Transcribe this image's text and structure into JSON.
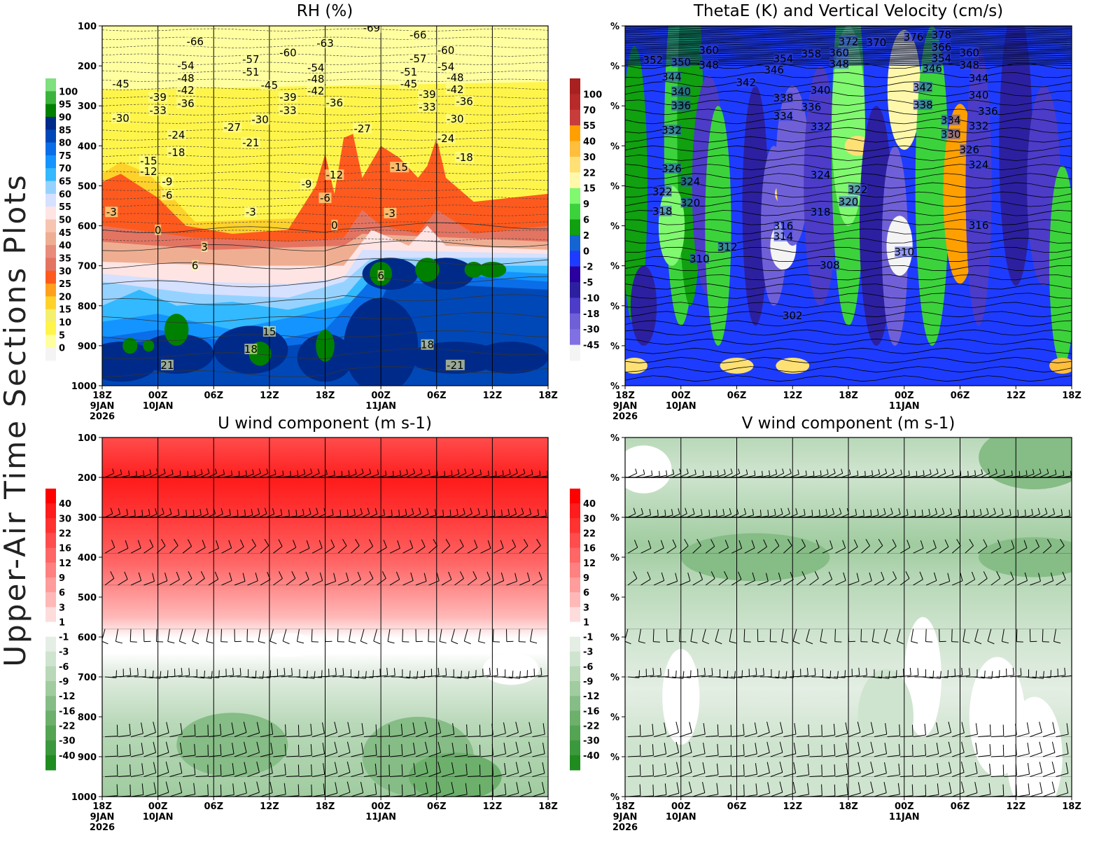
{
  "page": {
    "side_title": "Upper-Air Time Sections Plots"
  },
  "chart_data": [
    {
      "type": "heatmap",
      "title": "RH (%)",
      "y_axis": {
        "range_hPa": [
          1000,
          100
        ],
        "inverted": true,
        "ticks": [
          "100",
          "200",
          "300",
          "400",
          "500",
          "600",
          "700",
          "800",
          "900",
          "1000"
        ]
      },
      "x_axis": {
        "range": [
          "9JAN2026 18Z",
          "11JAN2026 18Z"
        ],
        "ticks": [
          {
            "label": "18Z",
            "sub": "9JAN",
            "sub2": "2026"
          },
          {
            "label": "00Z",
            "sub": "10JAN"
          },
          {
            "label": "06Z"
          },
          {
            "label": "12Z"
          },
          {
            "label": "18Z"
          },
          {
            "label": "00Z",
            "sub": "11JAN"
          },
          {
            "label": "06Z"
          },
          {
            "label": "12Z"
          },
          {
            "label": "18Z"
          }
        ]
      },
      "grid": true,
      "colorbar": {
        "labels": [
          "100",
          "95",
          "90",
          "85",
          "80",
          "75",
          "70",
          "65",
          "60",
          "55",
          "50",
          "45",
          "40",
          "35",
          "30",
          "25",
          "20",
          "15",
          "10",
          "5",
          "0"
        ],
        "colors": [
          "#7ee07e",
          "#3cb43c",
          "#008000",
          "#002a8a",
          "#0048b8",
          "#0a6ee8",
          "#1494ff",
          "#32b9ff",
          "#96d2ff",
          "#d6e0ff",
          "#ffe4e4",
          "#f7c4b0",
          "#efae92",
          "#e88c7c",
          "#e47462",
          "#ff5a1e",
          "#ffa01e",
          "#ffd22a",
          "#f5ef6e",
          "#fff54a",
          "#ffffa0",
          "#f4f4f4"
        ]
      },
      "overlay": "temperature contours (C)",
      "contour_labels": [
        {
          "v": "-66",
          "t": "10 04",
          "p": 139
        },
        {
          "v": "-63",
          "t": "10 18",
          "p": 144
        },
        {
          "v": "-69",
          "t": "10 23",
          "p": 105
        },
        {
          "v": "-66",
          "t": "11 04",
          "p": 123
        },
        {
          "v": "-60",
          "t": "10 14",
          "p": 167
        },
        {
          "v": "-60",
          "t": "11 07",
          "p": 161
        },
        {
          "v": "-57",
          "t": "10 10",
          "p": 184
        },
        {
          "v": "-57",
          "t": "11 04",
          "p": 182
        },
        {
          "v": "-54",
          "t": "10 03",
          "p": 200
        },
        {
          "v": "-54",
          "t": "10 17",
          "p": 205
        },
        {
          "v": "-54",
          "t": "11 07",
          "p": 202
        },
        {
          "v": "-51",
          "t": "10 10",
          "p": 216
        },
        {
          "v": "-51",
          "t": "11 03",
          "p": 216
        },
        {
          "v": "-48",
          "t": "10 03",
          "p": 231
        },
        {
          "v": "-48",
          "t": "10 17",
          "p": 233
        },
        {
          "v": "-48",
          "t": "11 08",
          "p": 230
        },
        {
          "v": "-45",
          "t": "09 20",
          "p": 245
        },
        {
          "v": "-45",
          "t": "10 12",
          "p": 249
        },
        {
          "v": "-45",
          "t": "11 03",
          "p": 245
        },
        {
          "v": "-42",
          "t": "10 03",
          "p": 261
        },
        {
          "v": "-42",
          "t": "10 17",
          "p": 263
        },
        {
          "v": "-42",
          "t": "11 08",
          "p": 259
        },
        {
          "v": "-39",
          "t": "10 00",
          "p": 279
        },
        {
          "v": "-39",
          "t": "10 14",
          "p": 279
        },
        {
          "v": "-39",
          "t": "11 05",
          "p": 272
        },
        {
          "v": "-36",
          "t": "10 03",
          "p": 294
        },
        {
          "v": "-36",
          "t": "10 19",
          "p": 293
        },
        {
          "v": "-36",
          "t": "11 09",
          "p": 289
        },
        {
          "v": "-33",
          "t": "10 00",
          "p": 312
        },
        {
          "v": "-33",
          "t": "10 14",
          "p": 312
        },
        {
          "v": "-33",
          "t": "11 05",
          "p": 303
        },
        {
          "v": "-30",
          "t": "09 20",
          "p": 331
        },
        {
          "v": "-30",
          "t": "10 11",
          "p": 335
        },
        {
          "v": "-30",
          "t": "11 08",
          "p": 333
        },
        {
          "v": "-27",
          "t": "10 08",
          "p": 354
        },
        {
          "v": "-27",
          "t": "10 22",
          "p": 357
        },
        {
          "v": "-24",
          "t": "10 02",
          "p": 373
        },
        {
          "v": "-24",
          "t": "11 07",
          "p": 382
        },
        {
          "v": "-21",
          "t": "10 10",
          "p": 392
        },
        {
          "v": "-18",
          "t": "10 02",
          "p": 417
        },
        {
          "v": "-18",
          "t": "11 09",
          "p": 429
        },
        {
          "v": "-15",
          "t": "09 23",
          "p": 438
        },
        {
          "v": "-15",
          "t": "11 02",
          "p": 454
        },
        {
          "v": "-12",
          "t": "09 23",
          "p": 464
        },
        {
          "v": "-12",
          "t": "10 19",
          "p": 473
        },
        {
          "v": "-9",
          "t": "10 01",
          "p": 490
        },
        {
          "v": "-9",
          "t": "10 16",
          "p": 496
        },
        {
          "v": "-6",
          "t": "10 01",
          "p": 524
        },
        {
          "v": "-6",
          "t": "10 18",
          "p": 531
        },
        {
          "v": "-3",
          "t": "09 19",
          "p": 566
        },
        {
          "v": "-3",
          "t": "10 10",
          "p": 566
        },
        {
          "v": "-3",
          "t": "11 01",
          "p": 569
        },
        {
          "v": "0",
          "t": "10 00",
          "p": 611
        },
        {
          "v": "0",
          "t": "10 19",
          "p": 599
        },
        {
          "v": "3",
          "t": "10 05",
          "p": 653
        },
        {
          "v": "6",
          "t": "10 04",
          "p": 700
        },
        {
          "v": "6",
          "t": "11 00",
          "p": 725
        },
        {
          "v": "15",
          "t": "10 12",
          "p": 865
        },
        {
          "v": "18",
          "t": "10 10",
          "p": 909
        },
        {
          "v": "18",
          "t": "11 05",
          "p": 898
        },
        {
          "v": "21",
          "t": "10 01",
          "p": 949
        },
        {
          "v": "-21",
          "t": "11 08",
          "p": 949
        }
      ]
    },
    {
      "type": "heatmap",
      "title": "ThetaE (K) and Vertical Velocity (cm/s)",
      "y_axis": {
        "range_hPa": [
          1000,
          100
        ],
        "inverted": true,
        "ticks": [
          "%",
          "%",
          "%",
          "%",
          "%",
          "%",
          "%",
          "%",
          "%",
          "%"
        ]
      },
      "x_axis": {
        "range": [
          "9JAN2026 18Z",
          "11JAN2026 18Z"
        ],
        "ticks": [
          {
            "label": "18Z",
            "sub": "9JAN",
            "sub2": "2026"
          },
          {
            "label": "00Z",
            "sub": "10JAN"
          },
          {
            "label": "06Z"
          },
          {
            "label": "12Z"
          },
          {
            "label": "18Z"
          },
          {
            "label": "00Z",
            "sub": "11JAN"
          },
          {
            "label": "06Z"
          },
          {
            "label": "12Z"
          },
          {
            "label": "18Z"
          }
        ]
      },
      "grid": false,
      "colorbar": {
        "labels": [
          "100",
          "70",
          "55",
          "40",
          "30",
          "22",
          "15",
          "9",
          "6",
          "2",
          "0",
          "-2",
          "-5",
          "-10",
          "-18",
          "-30",
          "-45"
        ],
        "colors": [
          "#a82020",
          "#b82a2a",
          "#c83c3c",
          "#ffa000",
          "#ffbe3c",
          "#ffe074",
          "#fff8aa",
          "#80f870",
          "#3cd23c",
          "#10a010",
          "#1464d2",
          "#1e3cff",
          "#2a00a0",
          "#2c20a0",
          "#4c3cc8",
          "#7060d8",
          "#8070e4",
          "#f4f4f4"
        ]
      },
      "overlay": "ThetaE contours (K)",
      "contour_labels": [
        {
          "v": "352",
          "t": "09 21",
          "p": 186
        },
        {
          "v": "350",
          "t": "10 00",
          "p": 191
        },
        {
          "v": "360",
          "t": "10 03",
          "p": 161
        },
        {
          "v": "348",
          "t": "10 03",
          "p": 198
        },
        {
          "v": "344",
          "t": "09 23",
          "p": 228
        },
        {
          "v": "342",
          "t": "10 07",
          "p": 242
        },
        {
          "v": "340",
          "t": "10 00",
          "p": 265
        },
        {
          "v": "336",
          "t": "10 00",
          "p": 300
        },
        {
          "v": "332",
          "t": "09 23",
          "p": 361
        },
        {
          "v": "326",
          "t": "09 23",
          "p": 457
        },
        {
          "v": "324",
          "t": "10 01",
          "p": 490
        },
        {
          "v": "322",
          "t": "09 22",
          "p": 515
        },
        {
          "v": "320",
          "t": "10 01",
          "p": 543
        },
        {
          "v": "318",
          "t": "09 22",
          "p": 564
        },
        {
          "v": "312",
          "t": "10 05",
          "p": 653
        },
        {
          "v": "310",
          "t": "10 02",
          "p": 683
        },
        {
          "v": "302",
          "t": "10 12",
          "p": 825
        },
        {
          "v": "354",
          "t": "10 11",
          "p": 182
        },
        {
          "v": "346",
          "t": "10 10",
          "p": 210
        },
        {
          "v": "358",
          "t": "10 14",
          "p": 170
        },
        {
          "v": "360",
          "t": "10 17",
          "p": 167
        },
        {
          "v": "348",
          "t": "10 17",
          "p": 195
        },
        {
          "v": "372",
          "t": "10 18",
          "p": 139
        },
        {
          "v": "370",
          "t": "10 21",
          "p": 142
        },
        {
          "v": "376",
          "t": "11 01",
          "p": 128
        },
        {
          "v": "378",
          "t": "11 04",
          "p": 123
        },
        {
          "v": "366",
          "t": "11 04",
          "p": 153
        },
        {
          "v": "354",
          "t": "11 04",
          "p": 181
        },
        {
          "v": "346",
          "t": "11 03",
          "p": 207
        },
        {
          "v": "360",
          "t": "11 07",
          "p": 167
        },
        {
          "v": "348",
          "t": "11 07",
          "p": 198
        },
        {
          "v": "344",
          "t": "11 08",
          "p": 231
        },
        {
          "v": "342",
          "t": "11 02",
          "p": 254
        },
        {
          "v": "340",
          "t": "11 08",
          "p": 273
        },
        {
          "v": "338",
          "t": "10 11",
          "p": 280
        },
        {
          "v": "338",
          "t": "11 02",
          "p": 298
        },
        {
          "v": "336",
          "t": "10 14",
          "p": 303
        },
        {
          "v": "336",
          "t": "11 09",
          "p": 314
        },
        {
          "v": "334",
          "t": "10 11",
          "p": 326
        },
        {
          "v": "334",
          "t": "11 05",
          "p": 336
        },
        {
          "v": "332",
          "t": "10 15",
          "p": 352
        },
        {
          "v": "332",
          "t": "11 08",
          "p": 350
        },
        {
          "v": "330",
          "t": "11 05",
          "p": 371
        },
        {
          "v": "340",
          "t": "10 15",
          "p": 261
        },
        {
          "v": "326",
          "t": "11 07",
          "p": 410
        },
        {
          "v": "324",
          "t": "11 08",
          "p": 448
        },
        {
          "v": "324",
          "t": "10 15",
          "p": 473
        },
        {
          "v": "322",
          "t": "10 19",
          "p": 510
        },
        {
          "v": "320",
          "t": "10 18",
          "p": 540
        },
        {
          "v": "318",
          "t": "10 15",
          "p": 566
        },
        {
          "v": "316",
          "t": "10 11",
          "p": 601
        },
        {
          "v": "314",
          "t": "10 11",
          "p": 627
        },
        {
          "v": "316",
          "t": "11 08",
          "p": 599
        },
        {
          "v": "310",
          "t": "11 00",
          "p": 666
        },
        {
          "v": "308",
          "t": "10 16",
          "p": 699
        }
      ]
    },
    {
      "type": "heatmap",
      "title": "U wind component (m s-1)",
      "y_axis": {
        "range_hPa": [
          1000,
          100
        ],
        "inverted": true,
        "ticks": [
          "100",
          "200",
          "300",
          "400",
          "500",
          "600",
          "700",
          "800",
          "900",
          "1000"
        ]
      },
      "x_axis": {
        "range": [
          "9JAN2026 18Z",
          "11JAN2026 18Z"
        ],
        "ticks": [
          {
            "label": "18Z",
            "sub": "9JAN",
            "sub2": "2026"
          },
          {
            "label": "00Z",
            "sub": "10JAN"
          },
          {
            "label": "06Z"
          },
          {
            "label": "12Z"
          },
          {
            "label": "18Z"
          },
          {
            "label": "00Z",
            "sub": "11JAN"
          },
          {
            "label": "06Z"
          },
          {
            "label": "12Z"
          },
          {
            "label": "18Z"
          }
        ]
      },
      "grid": true,
      "colorbar": {
        "labels": [
          "40",
          "30",
          "22",
          "16",
          "12",
          "9",
          "6",
          "3",
          "1",
          "-1",
          "-3",
          "-6",
          "-9",
          "-12",
          "-16",
          "-22",
          "-30",
          "-40"
        ],
        "colors": [
          "#ff0000",
          "#ff1c1c",
          "#ff3232",
          "#ff4c4c",
          "#ff6666",
          "#ff8080",
          "#ff9c9c",
          "#ffb8b8",
          "#ffdcdc",
          "#ffffff",
          "#e4eee4",
          "#cfe4cf",
          "#b8d8b8",
          "#a0cca0",
          "#86bc86",
          "#6cb06c",
          "#54a454",
          "#3c983c",
          "#208c20"
        ]
      },
      "overlay": "wind barbs"
    },
    {
      "type": "heatmap",
      "title": "V wind component (m s-1)",
      "y_axis": {
        "range_hPa": [
          1000,
          100
        ],
        "inverted": true,
        "ticks": [
          "%",
          "%",
          "%",
          "%",
          "%",
          "%",
          "%",
          "%",
          "%",
          "%"
        ]
      },
      "x_axis": {
        "range": [
          "9JAN2026 18Z",
          "11JAN2026 18Z"
        ],
        "ticks": [
          {
            "label": "18Z",
            "sub": "9JAN",
            "sub2": "2026"
          },
          {
            "label": "00Z",
            "sub": "10JAN"
          },
          {
            "label": "06Z"
          },
          {
            "label": "12Z"
          },
          {
            "label": "18Z"
          },
          {
            "label": "00Z",
            "sub": "11JAN"
          },
          {
            "label": "06Z"
          },
          {
            "label": "12Z"
          },
          {
            "label": "18Z"
          }
        ]
      },
      "grid": true,
      "colorbar": {
        "labels": [
          "40",
          "30",
          "22",
          "16",
          "12",
          "9",
          "6",
          "3",
          "1",
          "-1",
          "-3",
          "-6",
          "-9",
          "-12",
          "-16",
          "-22",
          "-30",
          "-40"
        ],
        "colors": [
          "#ff0000",
          "#ff1c1c",
          "#ff3232",
          "#ff4c4c",
          "#ff6666",
          "#ff8080",
          "#ff9c9c",
          "#ffb8b8",
          "#ffdcdc",
          "#ffffff",
          "#e4eee4",
          "#cfe4cf",
          "#b8d8b8",
          "#a0cca0",
          "#86bc86",
          "#6cb06c",
          "#54a454",
          "#3c983c",
          "#208c20"
        ]
      },
      "overlay": "wind barbs"
    }
  ]
}
